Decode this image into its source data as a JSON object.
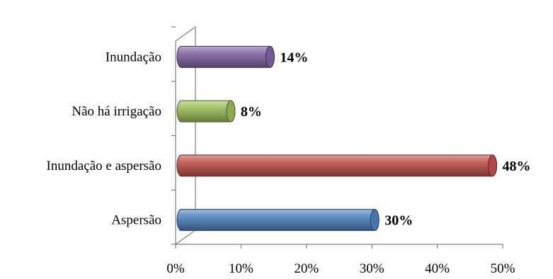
{
  "chart_data": {
    "type": "bar",
    "orientation": "horizontal",
    "categories": [
      "Aspersão",
      "Inundação e aspersão",
      "Não há irrigação",
      "Inundação"
    ],
    "values": [
      30,
      48,
      8,
      14
    ],
    "data_labels": [
      "30%",
      "48%",
      "8%",
      "14%"
    ],
    "colors": [
      "#4f81bd",
      "#c0504d",
      "#9bbb59",
      "#8064a2"
    ],
    "x_ticks": [
      "0%",
      "10%",
      "20%",
      "30%",
      "40%",
      "50%"
    ],
    "xlim": [
      0,
      50
    ],
    "grid": false,
    "legend": "none",
    "title": "",
    "xlabel": "",
    "ylabel": ""
  }
}
